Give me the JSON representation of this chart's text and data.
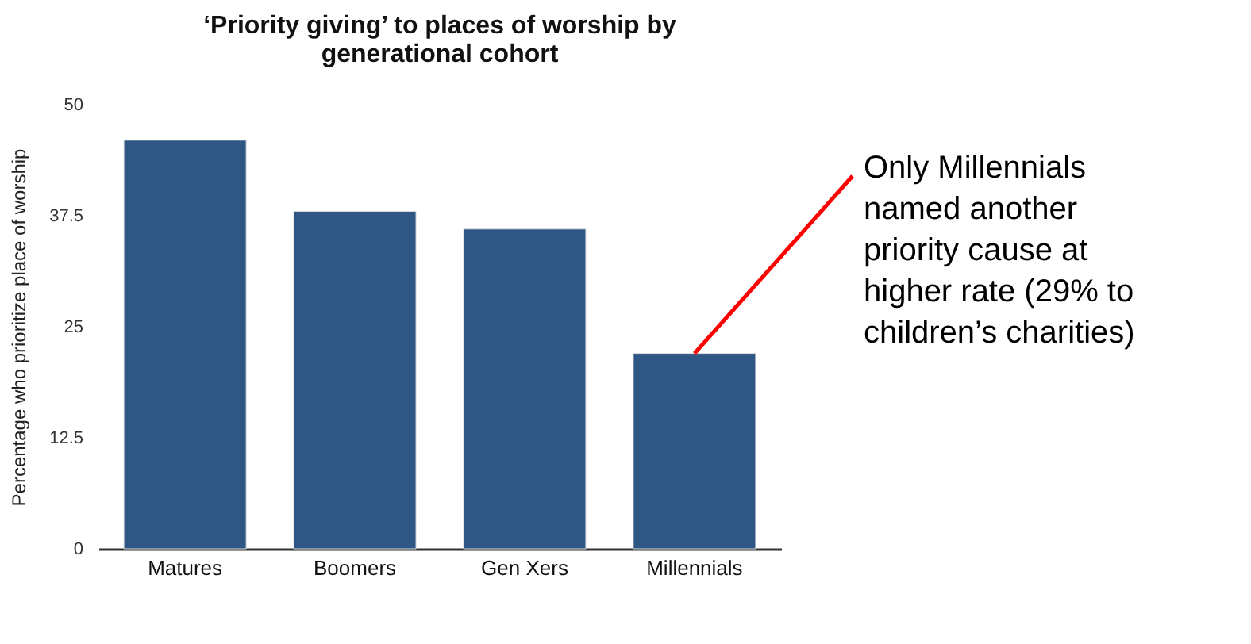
{
  "chart_data": {
    "type": "bar",
    "title": "‘Priority giving’ to places of worship by generational cohort",
    "ylabel": "Percentage who prioritize place of worship",
    "categories": [
      "Matures",
      "Boomers",
      "Gen Xers",
      "Millennials"
    ],
    "values": [
      46,
      38,
      36,
      22
    ],
    "color": "#2f5785",
    "ylim": [
      0,
      50
    ],
    "yticks": [
      0,
      12.5,
      25,
      37.5,
      50
    ],
    "grid": false,
    "annotations": [
      {
        "text": "Only Millennials named another priority cause at higher rate (29% to children’s charities)",
        "x": "Millennials",
        "y": 22
      }
    ]
  }
}
